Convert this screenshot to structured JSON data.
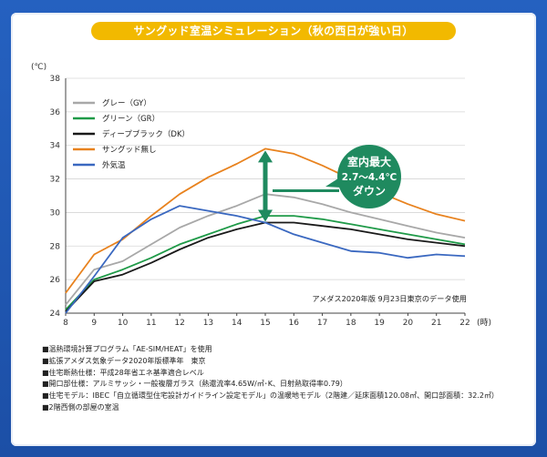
{
  "title": "サングッド室温シミュレーション（秋の西日が強い日）",
  "unit_top": "(℃)",
  "unit_right": "(時)",
  "source_note": "アメダス2020年版 9月23日東京のデータ使用",
  "callout": {
    "line1": "室内最大",
    "line2": "2.7～4.4℃",
    "line3": "ダウン"
  },
  "colors": {
    "gy": "#a8a8a8",
    "gr": "#1f9a48",
    "dk": "#1a1a1a",
    "none": "#e8821e",
    "out": "#3a68c0",
    "callout": "#1f8a5f",
    "title_bg": "#f2b900"
  },
  "notes": [
    "■温熱環境計算プログラム「AE-SIM/HEAT」を使用",
    "■拡張アメダス気象データ2020年版標準年　東京",
    "■住宅断熱仕様：平成28年省エネ基準適合レベル",
    "■開口部仕様：アルミサッシ・一般複層ガラス（熱還流率4.65W/㎡･K、日射熱取得率0.79）",
    "■住宅モデル：IBEC「自立循環型住宅設計ガイドライン設定モデル」の温暖地モデル（2階建／延床面積120.08㎡、開口部面積：32.2㎡）",
    "■2階西側の部屋の室温"
  ],
  "chart_data": {
    "type": "line",
    "x": [
      8,
      9,
      10,
      11,
      12,
      13,
      14,
      15,
      16,
      17,
      18,
      19,
      20,
      21,
      22
    ],
    "xlabel": "(時)",
    "ylabel": "(℃)",
    "xlim": [
      8,
      22
    ],
    "ylim": [
      24,
      38
    ],
    "yticks": [
      24,
      26,
      28,
      30,
      32,
      34,
      36,
      38
    ],
    "grid": true,
    "legend": "top-left",
    "series": [
      {
        "name": "グレー（GY）",
        "color": "#a8a8a8",
        "values": [
          24.5,
          26.6,
          27.1,
          28.1,
          29.1,
          29.8,
          30.4,
          31.1,
          30.9,
          30.5,
          30.0,
          29.6,
          29.2,
          28.8,
          28.5
        ]
      },
      {
        "name": "グリーン（GR）",
        "color": "#1f9a48",
        "values": [
          24.2,
          26.0,
          26.6,
          27.3,
          28.1,
          28.7,
          29.3,
          29.8,
          29.8,
          29.6,
          29.3,
          29.0,
          28.7,
          28.4,
          28.1
        ]
      },
      {
        "name": "ディープブラック（DK）",
        "color": "#1a1a1a",
        "values": [
          24.1,
          25.9,
          26.3,
          27.0,
          27.8,
          28.5,
          29.0,
          29.4,
          29.4,
          29.2,
          29.0,
          28.7,
          28.4,
          28.2,
          28.0
        ]
      },
      {
        "name": "サングッド無し",
        "color": "#e8821e",
        "values": [
          25.2,
          27.5,
          28.4,
          29.8,
          31.1,
          32.1,
          32.9,
          33.8,
          33.5,
          32.8,
          32.0,
          31.2,
          30.5,
          29.9,
          29.5
        ]
      },
      {
        "name": "外気温",
        "color": "#3a68c0",
        "values": [
          24.0,
          26.2,
          28.5,
          29.6,
          30.4,
          30.1,
          29.8,
          29.4,
          28.7,
          28.2,
          27.7,
          27.6,
          27.3,
          27.5,
          27.4
        ]
      }
    ]
  }
}
